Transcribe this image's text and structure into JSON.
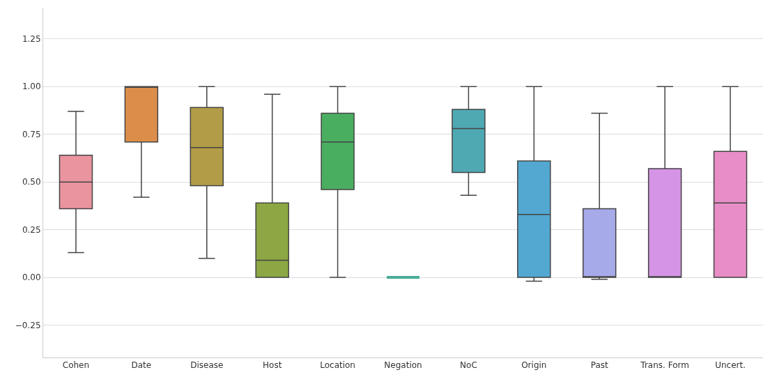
{
  "chart_data": {
    "type": "box",
    "categories": [
      "Cohen",
      "Date",
      "Disease",
      "Host",
      "Location",
      "Negation",
      "NoC",
      "Origin",
      "Past",
      "Trans. Form",
      "Uncert."
    ],
    "boxes": [
      {
        "low": 0.13,
        "q1": 0.36,
        "median": 0.5,
        "q3": 0.64,
        "high": 0.87
      },
      {
        "low": 0.42,
        "q1": 0.71,
        "median": 1.0,
        "q3": 1.0,
        "high": 1.0
      },
      {
        "low": 0.1,
        "q1": 0.48,
        "median": 0.68,
        "q3": 0.89,
        "high": 1.0
      },
      {
        "low": 0.0,
        "q1": 0.0,
        "median": 0.09,
        "q3": 0.39,
        "high": 0.96
      },
      {
        "low": 0.0,
        "q1": 0.46,
        "median": 0.71,
        "q3": 0.86,
        "high": 1.0
      },
      {
        "low": 0.0,
        "q1": 0.0,
        "median": 0.0,
        "q3": 0.0,
        "high": 0.0
      },
      {
        "low": 0.43,
        "q1": 0.55,
        "median": 0.78,
        "q3": 0.88,
        "high": 1.0
      },
      {
        "low": -0.02,
        "q1": 0.0,
        "median": 0.33,
        "q3": 0.61,
        "high": 1.0
      },
      {
        "low": -0.01,
        "q1": 0.0,
        "median": 0.0,
        "q3": 0.36,
        "high": 0.86
      },
      {
        "low": 0.0,
        "q1": 0.0,
        "median": 0.0,
        "q3": 0.57,
        "high": 1.0
      },
      {
        "low": 0.0,
        "q1": 0.0,
        "median": 0.39,
        "q3": 0.66,
        "high": 1.0
      }
    ],
    "colors": [
      "#e9949f",
      "#dc8d4a",
      "#b29c47",
      "#8ca743",
      "#4aae60",
      "#49ad96",
      "#4ea9b2",
      "#53a8d1",
      "#a6aae9",
      "#d594e6",
      "#e88ec6"
    ],
    "ylim": [
      -0.42,
      1.41
    ],
    "yticks": [
      {
        "value": -0.25,
        "label": "−0.25"
      },
      {
        "value": 0,
        "label": "0.00"
      },
      {
        "value": 0.25,
        "label": "0.25"
      },
      {
        "value": 0.5,
        "label": "0.50"
      },
      {
        "value": 0.75,
        "label": "0.75"
      },
      {
        "value": 1.0,
        "label": "1.00"
      },
      {
        "value": 1.25,
        "label": "1.25"
      }
    ],
    "grid": "y"
  }
}
